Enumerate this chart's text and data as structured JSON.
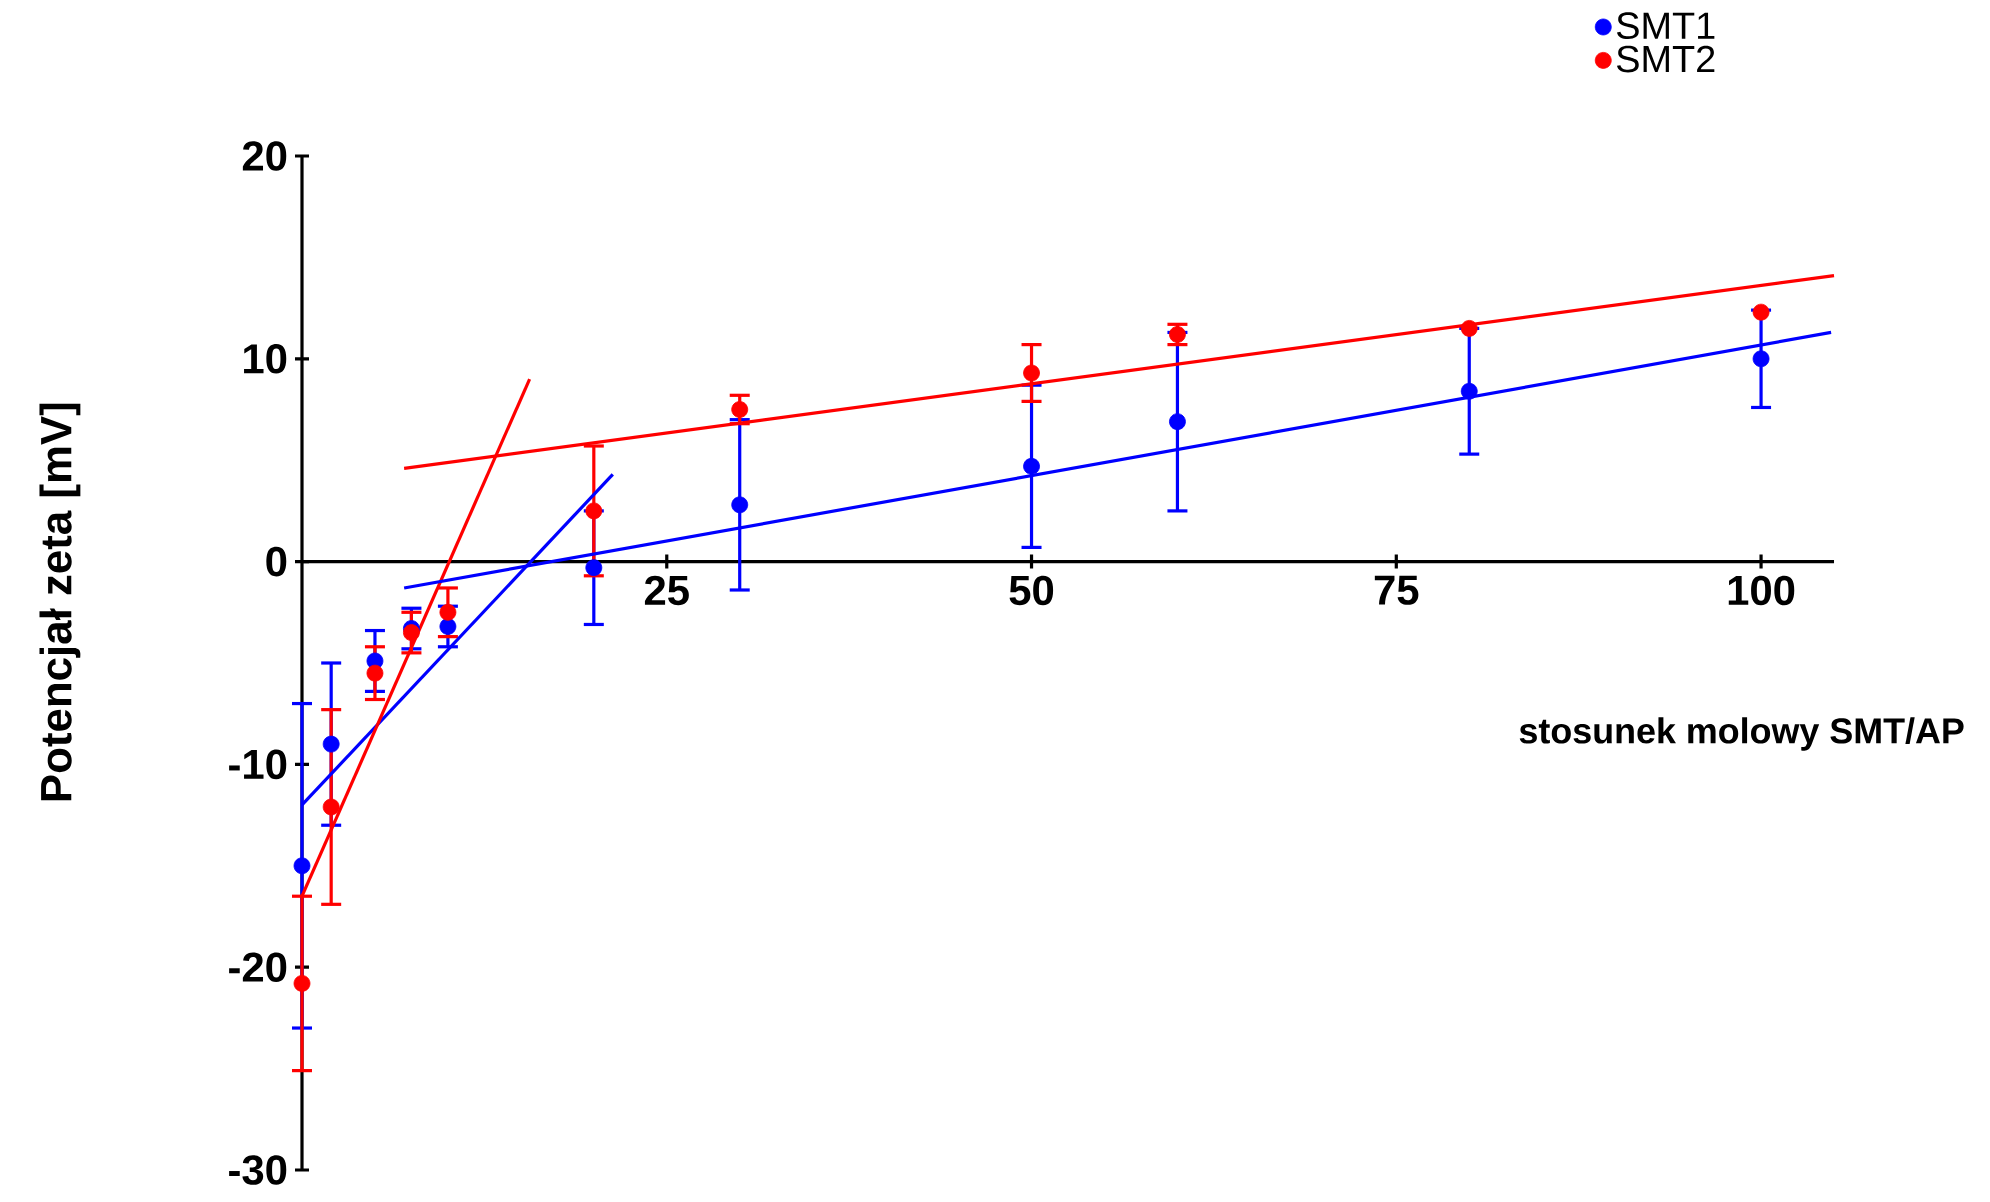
{
  "chart_data": {
    "type": "scatter",
    "xlabel": "stosunek molowy SMT/AP",
    "ylabel": "Potencjał zeta [mV]",
    "xlim": [
      0,
      105
    ],
    "ylim": [
      -30,
      20
    ],
    "xticks": [
      25,
      50,
      75,
      100
    ],
    "yticks": [
      -30,
      -20,
      -10,
      0,
      10,
      20
    ],
    "legend": "top right",
    "series": [
      {
        "name": "SMT1",
        "marker": "circle",
        "color": "#0000ff",
        "x": [
          0,
          2,
          5,
          7.5,
          10,
          20,
          30,
          50,
          60,
          80,
          100
        ],
        "values": [
          -15,
          -9,
          -4.9,
          -3.3,
          -3.2,
          -0.3,
          2.8,
          4.7,
          6.9,
          8.4,
          10
        ],
        "errors": [
          8,
          4,
          1.5,
          1,
          1,
          2.8,
          4.2,
          4,
          4.4,
          3.1,
          2.4
        ]
      },
      {
        "name": "SMT2",
        "marker": "circle",
        "color": "#ff0000",
        "x": [
          0,
          2,
          5,
          7.5,
          10,
          20,
          30,
          50,
          60,
          80,
          100
        ],
        "values": [
          -20.8,
          -12.1,
          -5.5,
          -3.5,
          -2.5,
          2.5,
          7.5,
          9.3,
          11.2,
          11.5,
          12.3
        ],
        "errors": [
          4.3,
          4.8,
          1.3,
          1,
          1.2,
          3.2,
          0.7,
          1.4,
          0.5,
          null,
          null
        ]
      },
      {
        "type": "line",
        "marker": "none",
        "color": "#0000ff",
        "x": [
          0,
          21.3
        ],
        "values": [
          -12,
          4.3
        ]
      },
      {
        "type": "line",
        "marker": "none",
        "color": "#ff0000",
        "x": [
          0,
          15.6
        ],
        "values": [
          -16.5,
          9
        ]
      },
      {
        "type": "line",
        "marker": "none",
        "color": "#0000ff",
        "x": [
          7,
          104.8
        ],
        "values": [
          -1.3,
          11.3
        ]
      },
      {
        "type": "line",
        "marker": "none",
        "color": "#ff0000",
        "x": [
          7,
          105
        ],
        "values": [
          4.6,
          14.1
        ]
      }
    ]
  }
}
